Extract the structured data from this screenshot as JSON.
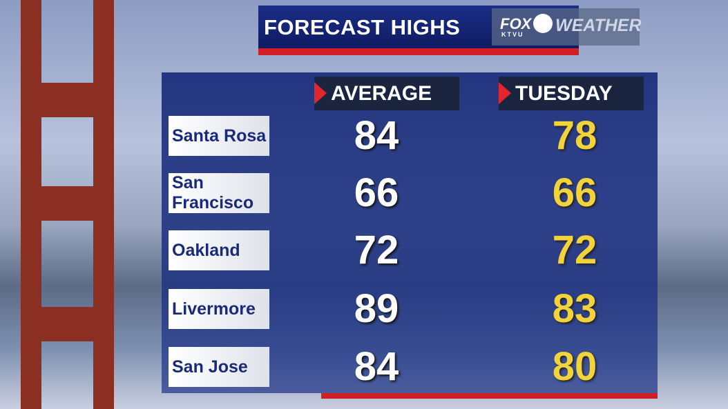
{
  "header": {
    "title": "FORECAST HIGHS",
    "logo": {
      "network": "FOX",
      "call_sign": "KTVU",
      "brand": "WEATHER"
    }
  },
  "table": {
    "columns": [
      "AVERAGE",
      "TUESDAY"
    ],
    "rows": [
      {
        "city": "Santa Rosa",
        "average": 84,
        "tuesday": 78
      },
      {
        "city": "San Francisco",
        "average": 66,
        "tuesday": 66
      },
      {
        "city": "Oakland",
        "average": 72,
        "tuesday": 72
      },
      {
        "city": "Livermore",
        "average": 89,
        "tuesday": 83
      },
      {
        "city": "San Jose",
        "average": 84,
        "tuesday": 80
      }
    ]
  }
}
